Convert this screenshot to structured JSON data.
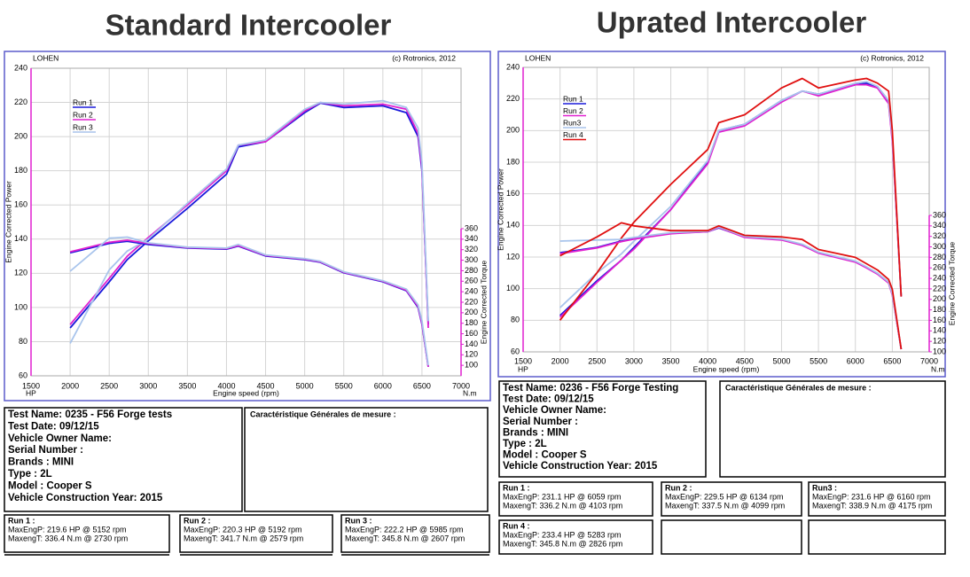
{
  "chart_data": [
    {
      "type": "line",
      "title": "Standard Intercooler",
      "header_left": "LOHEN",
      "header_right": "(c) Rotronics, 2012",
      "x_label": "Engine speed (rpm)",
      "y_label": "Engine Corrected Power",
      "y2_label": "Engine Corrected Torque",
      "y_unit": "HP",
      "y2_unit": "N.m",
      "grid": true,
      "xlim": [
        1500,
        7000
      ],
      "xticks": [
        1500,
        2000,
        2500,
        3000,
        3500,
        4000,
        4500,
        5000,
        5500,
        6000,
        6500,
        7000
      ],
      "ylim": [
        60,
        240
      ],
      "yticks": [
        60,
        80,
        100,
        120,
        140,
        160,
        180,
        200,
        220,
        240
      ],
      "y2lim": [
        80,
        360
      ],
      "y2ticks": [
        100,
        120,
        140,
        160,
        180,
        200,
        220,
        240,
        260,
        280,
        300,
        320,
        340,
        360
      ],
      "x": [
        2000,
        2500,
        2730,
        3000,
        3500,
        4000,
        4150,
        4500,
        5000,
        5200,
        5500,
        6000,
        6300,
        6450,
        6500,
        6580
      ],
      "series": [
        {
          "name": "Run 1",
          "color": "#1a1adb",
          "values": [
            88,
            115,
            128,
            139,
            158,
            178,
            194,
            197,
            214,
            219.6,
            217,
            218,
            214,
            200,
            180,
            90
          ]
        },
        {
          "name": "Run 2",
          "color": "#e020d0",
          "values": [
            90,
            117,
            130,
            141,
            160,
            180,
            195,
            197,
            215,
            220,
            218,
            219,
            216,
            202,
            182,
            88
          ]
        },
        {
          "name": "Run 3",
          "color": "#a8c4ec",
          "values": [
            79,
            122,
            133,
            140,
            161,
            181,
            195,
            198,
            216,
            220,
            219,
            221,
            217,
            205,
            185,
            92
          ]
        },
        {
          "color": "#1a1adb",
          "axis": "y2",
          "values": [
            314,
            332,
            336,
            330,
            323,
            321,
            327,
            308,
            301,
            296,
            276,
            259,
            242,
            210,
            178,
            97
          ]
        },
        {
          "color": "#e020d0",
          "axis": "y2",
          "values": [
            316,
            334,
            338,
            332,
            324,
            322,
            328,
            309,
            302,
            297,
            277,
            260,
            243,
            212,
            180,
            97
          ]
        },
        {
          "color": "#a8c4ec",
          "axis": "y2",
          "values": [
            279,
            342,
            344,
            333,
            325,
            323,
            330,
            310,
            303,
            298,
            278,
            261,
            245,
            215,
            185,
            100
          ]
        }
      ]
    },
    {
      "type": "line",
      "title": "Uprated Intercooler",
      "header_left": "LOHEN",
      "header_right": "(c) Rotronics, 2012",
      "x_label": "Engine speed (rpm)",
      "y_label": "Engine Corrected Power",
      "y2_label": "Engine Corrected Torque",
      "y_unit": "HP",
      "y2_unit": "N.m",
      "grid": true,
      "xlim": [
        1500,
        7000
      ],
      "xticks": [
        1500,
        2000,
        2500,
        3000,
        3500,
        4000,
        4500,
        5000,
        5500,
        6000,
        6500,
        7000
      ],
      "ylim": [
        60,
        240
      ],
      "yticks": [
        60,
        80,
        100,
        120,
        140,
        160,
        180,
        200,
        220,
        240
      ],
      "y2lim": [
        100,
        360
      ],
      "y2ticks": [
        100,
        120,
        140,
        160,
        180,
        200,
        220,
        240,
        260,
        280,
        300,
        320,
        340,
        360
      ],
      "x": [
        2000,
        2500,
        2830,
        3000,
        3500,
        4000,
        4150,
        4500,
        5000,
        5280,
        5500,
        6000,
        6150,
        6300,
        6450,
        6500,
        6620
      ],
      "series": [
        {
          "name": "Run 1",
          "color": "#1a1adb",
          "values": [
            83,
            105,
            118,
            126,
            150,
            180,
            200,
            204,
            219,
            225,
            223,
            229,
            230,
            227,
            218,
            195,
            95
          ]
        },
        {
          "name": "Run 2",
          "color": "#e020d0",
          "values": [
            82,
            104,
            118,
            125,
            150,
            179,
            199,
            203,
            218,
            225,
            222,
            229,
            229,
            227,
            217,
            193,
            95
          ]
        },
        {
          "name": "Run3",
          "color": "#a8c4ec",
          "values": [
            88,
            110,
            122,
            130,
            152,
            181,
            200,
            204,
            219,
            225,
            223,
            230,
            231,
            228,
            219,
            196,
            95
          ]
        },
        {
          "name": "Run 4",
          "color": "#e01010",
          "values": [
            80,
            110,
            132,
            142,
            166,
            188,
            205,
            210,
            227,
            233,
            227,
            232,
            233,
            230,
            225,
            200,
            95
          ]
        },
        {
          "color": "#1a1adb",
          "axis": "y2",
          "values": [
            289,
            299,
            311,
            316,
            326,
            329,
            336,
            319,
            314,
            304,
            289,
            272,
            261,
            249,
            232,
            210,
            105
          ]
        },
        {
          "color": "#e020d0",
          "axis": "y2",
          "values": [
            287,
            298,
            310,
            315,
            325,
            329,
            337,
            318,
            313,
            303,
            288,
            271,
            260,
            248,
            231,
            208,
            105
          ]
        },
        {
          "color": "#a8c4ec",
          "axis": "y2",
          "values": [
            311,
            313,
            314,
            318,
            327,
            330,
            338,
            320,
            315,
            305,
            290,
            273,
            262,
            250,
            233,
            211,
            105
          ]
        },
        {
          "color": "#e01010",
          "axis": "y2",
          "values": [
            283,
            319,
            345.8,
            340,
            331,
            331,
            340,
            322,
            319,
            314,
            295,
            280,
            268,
            256,
            238,
            219,
            105
          ]
        }
      ]
    }
  ],
  "reports": [
    {
      "test": [
        "Test Name: 0235 - F56 Forge tests",
        "Test Date: 09/12/15",
        "Vehicle Owner Name:",
        "Serial Number  :",
        "Brands  : MINI",
        "Type  : 2L",
        "Model  : Cooper S",
        "Vehicle Construction Year: 2015"
      ],
      "measure": "Caractéristique Générales de mesure :",
      "runs": [
        {
          "title": "Run 1 :",
          "lines": [
            "MaxEngP: 219.6 HP @ 5152 rpm",
            "MaxengT: 336.4 N.m @ 2730 rpm"
          ]
        },
        {
          "title": "Run 2 :",
          "lines": [
            "MaxEngP: 220.3 HP @ 5192 rpm",
            "MaxengT: 341.7 N.m @ 2579 rpm"
          ]
        },
        {
          "title": "Run 3 :",
          "lines": [
            "MaxEngP: 222.2 HP @ 5985 rpm",
            "MaxengT: 345.8 N.m @ 2607 rpm"
          ]
        }
      ]
    },
    {
      "test": [
        "Test Name: 0236 - F56 Forge Testing",
        "Test Date: 09/12/15",
        "Vehicle Owner Name:",
        "Serial Number  :",
        "Brands  : MINI",
        "Type  : 2L",
        "Model  : Cooper S",
        "Vehicle Construction Year: 2015"
      ],
      "measure": "Caractéristique Générales de mesure :",
      "runs": [
        {
          "title": "Run 1 :",
          "lines": [
            "MaxEngP: 231.1 HP @ 6059 rpm",
            "MaxengT: 336.2 N.m @ 4103 rpm"
          ]
        },
        {
          "title": "Run 2 :",
          "lines": [
            "MaxEngP: 229.5 HP @ 6134 rpm",
            "MaxengT: 337.5 N.m @ 4099 rpm"
          ]
        },
        {
          "title": "Run3 :",
          "lines": [
            "MaxEngP: 231.6 HP @ 6160 rpm",
            "MaxengT: 338.9 N.m @ 4175 rpm"
          ]
        },
        {
          "title": "Run 4 :",
          "lines": [
            "MaxEngP: 233.4 HP @ 5283 rpm",
            "MaxengT: 345.8 N.m @ 2826 rpm"
          ]
        }
      ]
    }
  ]
}
